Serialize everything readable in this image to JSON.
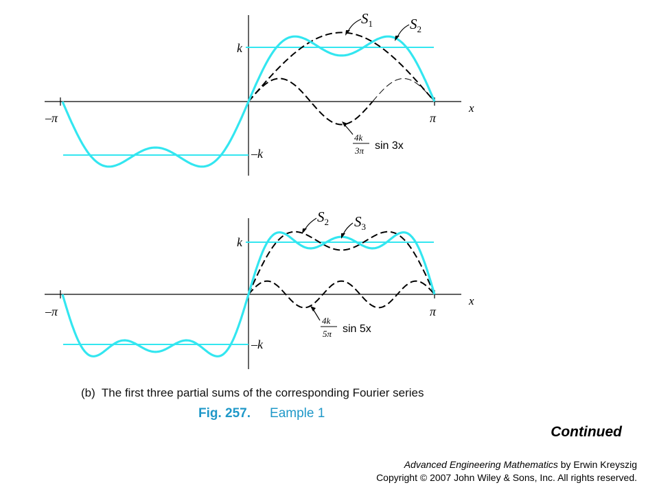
{
  "chart_data": [
    {
      "type": "line",
      "x_range": [
        "-π",
        "π"
      ],
      "y_level": "k",
      "axis": {
        "x_label": "x",
        "tick_left": "–π",
        "tick_right": "π",
        "level_top": "k",
        "level_bottom": "–k"
      },
      "series": [
        {
          "name": "S1",
          "style": "dashed",
          "color": "#000000",
          "formula": "(4k/π) sin x"
        },
        {
          "name": "S2",
          "style": "solid",
          "color": "#33e6f0",
          "formula": "(4k/π)(sin x + sin 3x / 3)"
        },
        {
          "name": "",
          "style": "dashed",
          "color": "#000000",
          "formula": "(4k/3π) sin 3x"
        },
        {
          "name": "",
          "style": "solid",
          "color": "#33e6f0",
          "formula": "square wave level ±k"
        }
      ],
      "labels": {
        "series_a": "S",
        "series_a_sub": "1",
        "series_b": "S",
        "series_b_sub": "2",
        "term_num": "4k",
        "term_den": "3π",
        "term_text": "sin 3x"
      }
    },
    {
      "type": "line",
      "x_range": [
        "-π",
        "π"
      ],
      "y_level": "k",
      "axis": {
        "x_label": "x",
        "tick_left": "–π",
        "tick_right": "π",
        "level_top": "k",
        "level_bottom": "–k"
      },
      "series": [
        {
          "name": "S2",
          "style": "dashed",
          "color": "#000000",
          "formula": "(4k/π)(sin x + sin 3x / 3)"
        },
        {
          "name": "S3",
          "style": "solid",
          "color": "#33e6f0",
          "formula": "(4k/π)(sin x + sin 3x / 3 + sin 5x / 5)"
        },
        {
          "name": "",
          "style": "dashed",
          "color": "#000000",
          "formula": "(4k/5π) sin 5x"
        },
        {
          "name": "",
          "style": "solid",
          "color": "#33e6f0",
          "formula": "square wave level ±k"
        }
      ],
      "labels": {
        "series_a": "S",
        "series_a_sub": "2",
        "series_b": "S",
        "series_b_sub": "3",
        "term_num": "4k",
        "term_den": "5π",
        "term_text": "sin 5x"
      }
    }
  ],
  "caption": {
    "part": "(b)",
    "text": "The first three partial sums of the corresponding Fourier series"
  },
  "figure": {
    "number": "Fig. 257.",
    "title": "Eample 1"
  },
  "continued": "Continued",
  "credit": {
    "book": "Advanced Engineering Mathematics",
    "by": " by Erwin Kreyszig",
    "copyright": "Copyright © 2007 John Wiley & Sons, Inc.  All rights reserved."
  },
  "colors": {
    "accent": "#33e6f0",
    "figure_label": "#1f98c8"
  }
}
